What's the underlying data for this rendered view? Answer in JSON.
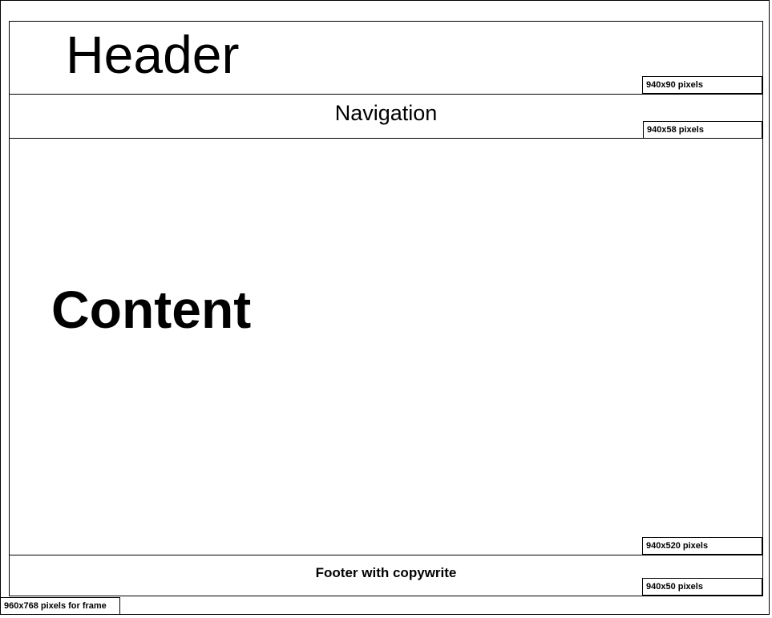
{
  "header": {
    "title": "Header",
    "size_label": "940x90 pixels"
  },
  "navigation": {
    "title": "Navigation",
    "size_label": "940x58 pixels"
  },
  "content": {
    "title": "Content",
    "size_label": "940x520 pixels"
  },
  "footer": {
    "title": "Footer with copywrite",
    "size_label": "940x50 pixels"
  },
  "frame": {
    "size_label": "960x768 pixels for frame"
  }
}
